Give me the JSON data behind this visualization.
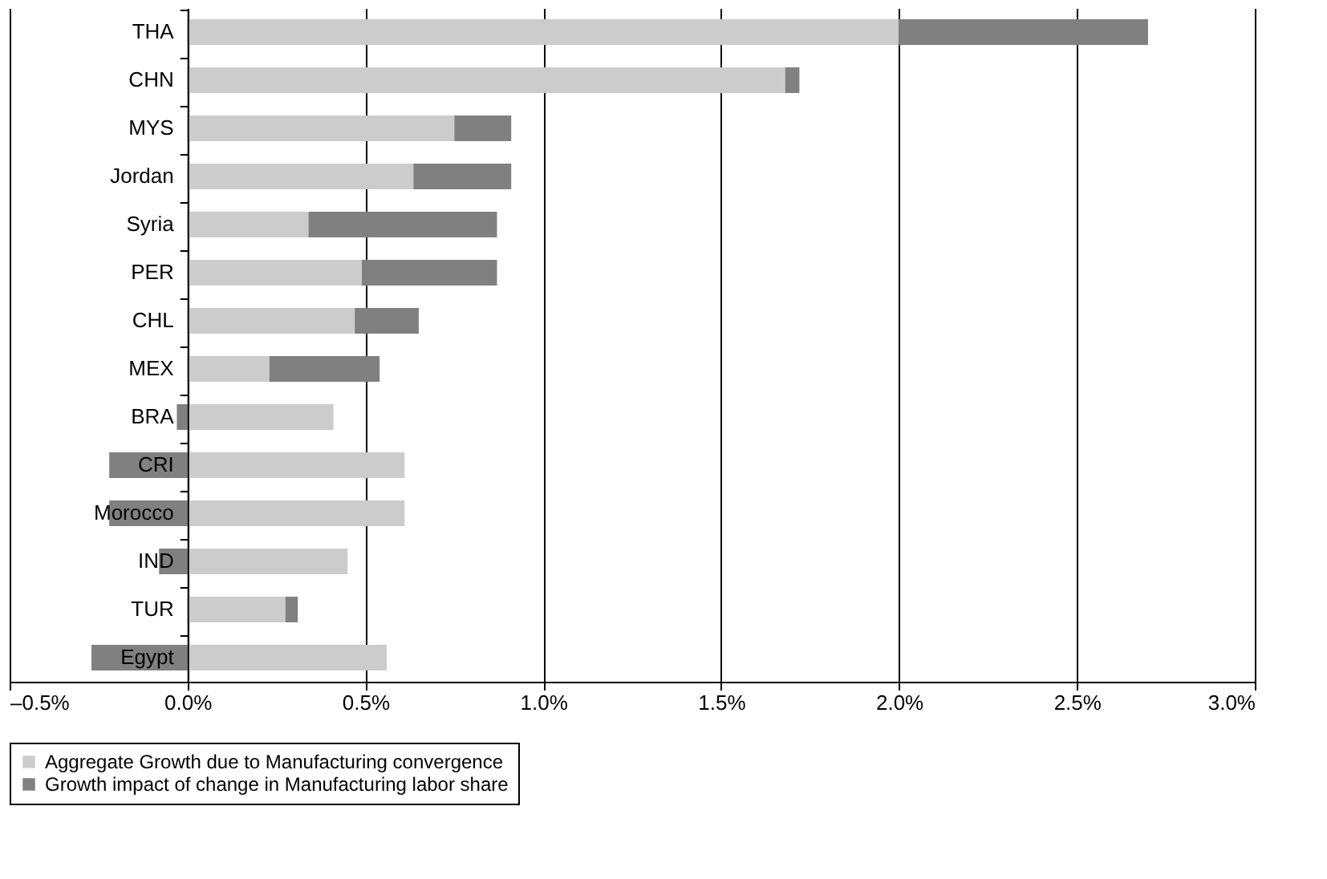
{
  "chart_data": {
    "type": "bar",
    "orientation": "horizontal",
    "stacked": true,
    "categories": [
      "THA",
      "CHN",
      "MYS",
      "Jordan",
      "Syria",
      "PER",
      "CHL",
      "MEX",
      "BRA",
      "CRI",
      "Morocco",
      "IND",
      "TUR",
      "Egypt"
    ],
    "series": [
      {
        "name": "Aggregate Growth due to Manufacturing convergence",
        "color": "#cccccc",
        "values": [
          2.0,
          1.68,
          0.75,
          0.635,
          0.34,
          0.49,
          0.47,
          0.23,
          0.41,
          0.61,
          0.61,
          0.45,
          0.275,
          0.56
        ]
      },
      {
        "name": "Growth impact of change in Manufacturing labor share",
        "color": "#808080",
        "values": [
          0.7,
          0.04,
          0.16,
          0.275,
          0.53,
          0.38,
          0.18,
          0.31,
          -0.03,
          -0.22,
          -0.22,
          -0.08,
          0.035,
          -0.27
        ]
      }
    ],
    "xlim": [
      -0.5,
      3.0
    ],
    "xticks": [
      {
        "value": -0.5,
        "label": "–0.5%"
      },
      {
        "value": 0,
        "label": "0.0%"
      },
      {
        "value": 0.5,
        "label": "0.5%"
      },
      {
        "value": 1.0,
        "label": "1.0%"
      },
      {
        "value": 1.5,
        "label": "1.5%"
      },
      {
        "value": 2.0,
        "label": "2.0%"
      },
      {
        "value": 2.5,
        "label": "2.5%"
      },
      {
        "value": 3.0,
        "label": "3.0%"
      }
    ],
    "grid": "x",
    "legend": "bottom"
  }
}
